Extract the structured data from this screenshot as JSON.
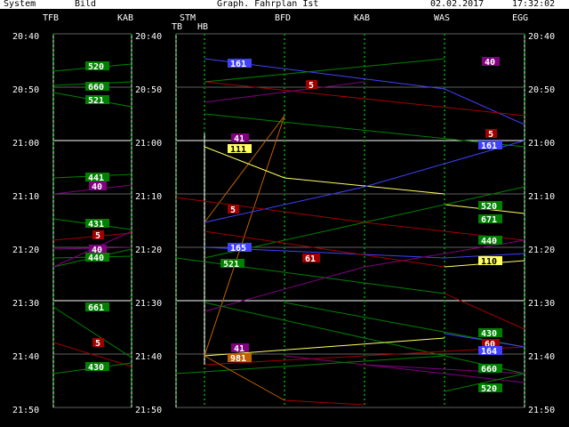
{
  "menu": {
    "system": "System",
    "bild": "Bild",
    "title": "Graph. Fahrplan Ist",
    "date": "02.02.2017",
    "time": "17:32:02"
  },
  "stations": [
    "TFB",
    "KAB",
    "STM",
    "TB",
    "HB",
    "BFD",
    "KAB",
    "WAS",
    "EGG"
  ],
  "time_axis": [
    "20:40",
    "20:50",
    "21:00",
    "21:10",
    "21:20",
    "21:30",
    "21:40",
    "21:50"
  ],
  "colors": {
    "grid": "#ffffff",
    "track": "#008000",
    "green": "#008000",
    "red": "#a00000",
    "blue": "#4040ff",
    "magenta": "#800080",
    "yellow": "#ffff60",
    "orange": "#c06000"
  },
  "train_labels": [
    {
      "text": "520",
      "color": "green",
      "bg": "#008000",
      "fg": "#fff"
    },
    {
      "text": "660",
      "color": "green",
      "bg": "#008000",
      "fg": "#fff"
    },
    {
      "text": "521",
      "color": "green",
      "bg": "#008000",
      "fg": "#fff"
    },
    {
      "text": "441",
      "color": "green",
      "bg": "#008000",
      "fg": "#fff"
    },
    {
      "text": "40",
      "color": "magenta",
      "bg": "#800080",
      "fg": "#fff"
    },
    {
      "text": "431",
      "color": "green",
      "bg": "#008000",
      "fg": "#fff"
    },
    {
      "text": "5",
      "color": "red",
      "bg": "#a00000",
      "fg": "#fff"
    },
    {
      "text": "40",
      "color": "magenta",
      "bg": "#800080",
      "fg": "#fff"
    },
    {
      "text": "440",
      "color": "green",
      "bg": "#008000",
      "fg": "#fff"
    },
    {
      "text": "661",
      "color": "green",
      "bg": "#008000",
      "fg": "#fff"
    },
    {
      "text": "5",
      "color": "red",
      "bg": "#a00000",
      "fg": "#fff"
    },
    {
      "text": "430",
      "color": "green",
      "bg": "#008000",
      "fg": "#fff"
    },
    {
      "text": "161",
      "color": "blue",
      "bg": "#4040ff",
      "fg": "#fff"
    },
    {
      "text": "5",
      "color": "red",
      "bg": "#a00000",
      "fg": "#fff"
    },
    {
      "text": "41",
      "color": "magenta",
      "bg": "#800080",
      "fg": "#fff"
    },
    {
      "text": "111",
      "color": "yellow",
      "bg": "#ffff60",
      "fg": "#000"
    },
    {
      "text": "5",
      "color": "red",
      "bg": "#a00000",
      "fg": "#fff"
    },
    {
      "text": "165",
      "color": "blue",
      "bg": "#4040ff",
      "fg": "#fff"
    },
    {
      "text": "521",
      "color": "green",
      "bg": "#008000",
      "fg": "#fff"
    },
    {
      "text": "61",
      "color": "red",
      "bg": "#a00000",
      "fg": "#fff"
    },
    {
      "text": "41",
      "color": "magenta",
      "bg": "#800080",
      "fg": "#fff"
    },
    {
      "text": "981",
      "color": "orange",
      "bg": "#c06000",
      "fg": "#fff"
    },
    {
      "text": "40",
      "color": "magenta",
      "bg": "#800080",
      "fg": "#fff"
    },
    {
      "text": "5",
      "color": "red",
      "bg": "#a00000",
      "fg": "#fff"
    },
    {
      "text": "161",
      "color": "blue",
      "bg": "#4040ff",
      "fg": "#fff"
    },
    {
      "text": "520",
      "color": "green",
      "bg": "#008000",
      "fg": "#fff"
    },
    {
      "text": "671",
      "color": "green",
      "bg": "#008000",
      "fg": "#fff"
    },
    {
      "text": "440",
      "color": "green",
      "bg": "#008000",
      "fg": "#fff"
    },
    {
      "text": "110",
      "color": "yellow",
      "bg": "#ffff60",
      "fg": "#000"
    },
    {
      "text": "430",
      "color": "green",
      "bg": "#008000",
      "fg": "#fff"
    },
    {
      "text": "60",
      "color": "red",
      "bg": "#a00000",
      "fg": "#fff"
    },
    {
      "text": "164",
      "color": "blue",
      "bg": "#4040ff",
      "fg": "#fff"
    },
    {
      "text": "660",
      "color": "green",
      "bg": "#008000",
      "fg": "#fff"
    },
    {
      "text": "520",
      "color": "green",
      "bg": "#008000",
      "fg": "#fff"
    }
  ]
}
